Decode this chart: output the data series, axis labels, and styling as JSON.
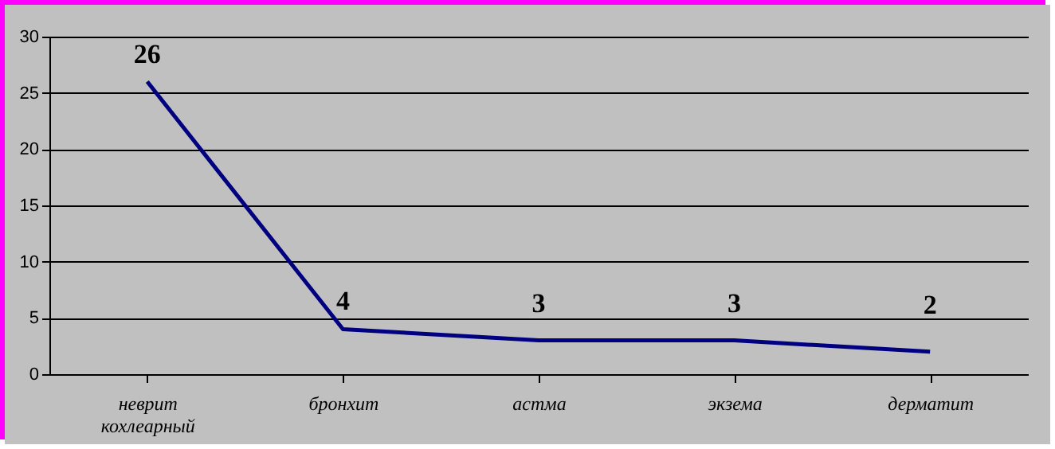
{
  "chart_data": {
    "type": "line",
    "categories": [
      "неврит кохлеарный",
      "бронхит",
      "астма",
      "экзема",
      "дерматит"
    ],
    "series": [
      {
        "color": "#000080",
        "values": [
          26,
          4,
          3,
          3,
          2
        ]
      }
    ],
    "ylim": [
      0,
      30
    ],
    "yticks": [
      0,
      5,
      10,
      15,
      20,
      25,
      30
    ],
    "grid": "y",
    "data_labels": true,
    "marker": "none"
  }
}
